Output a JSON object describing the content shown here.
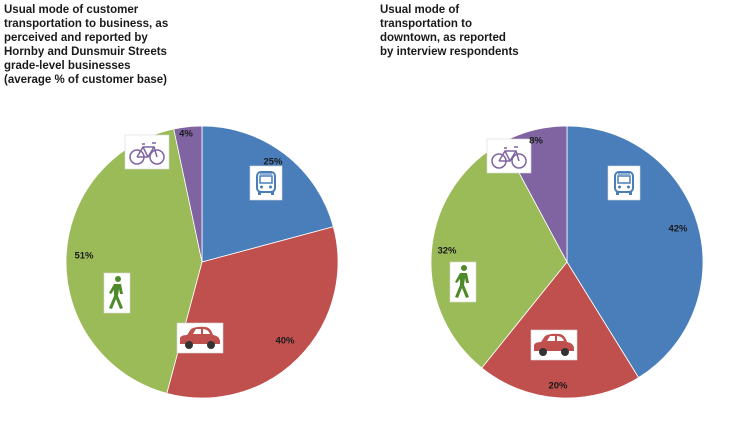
{
  "chart_data": [
    {
      "type": "pie",
      "title": "Usual mode of customer\ntransportation to business, as\nperceived and reported by\nHornby and Dunsmuir Streets\ngrade-level businesses\n(average % of customer base)",
      "categories": [
        "transit",
        "car",
        "walk",
        "bicycle"
      ],
      "values": [
        25,
        40,
        51,
        4
      ],
      "labels": [
        "25%",
        "40%",
        "51%",
        "4%"
      ],
      "colors": [
        "#4a7ebb",
        "#c0504d",
        "#9bbb59",
        "#8064a2"
      ],
      "icons": [
        "bus-icon",
        "car-icon",
        "pedestrian-icon",
        "bicycle-icon"
      ]
    },
    {
      "type": "pie",
      "title": "Usual mode of\ntransportation to\ndowntown, as reported\nby interview respondents",
      "categories": [
        "transit",
        "car",
        "walk",
        "bicycle"
      ],
      "values": [
        42,
        20,
        32,
        8
      ],
      "labels": [
        "42%",
        "20%",
        "32%",
        "8%"
      ],
      "colors": [
        "#4a7ebb",
        "#c0504d",
        "#9bbb59",
        "#8064a2"
      ],
      "icons": [
        "bus-icon",
        "car-icon",
        "pedestrian-icon",
        "bicycle-icon"
      ]
    }
  ]
}
